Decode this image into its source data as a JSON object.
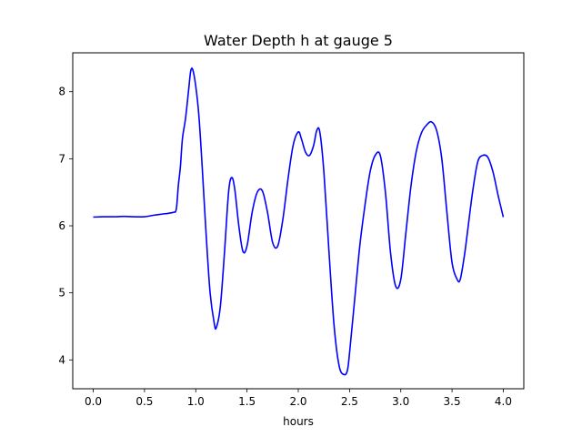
{
  "chart_data": {
    "type": "line",
    "title": "Water Depth h at gauge 5",
    "xlabel": "hours",
    "ylabel": "",
    "xlim": [
      -0.2,
      4.2
    ],
    "ylim": [
      3.57,
      8.58
    ],
    "xticks": [
      0.0,
      0.5,
      1.0,
      1.5,
      2.0,
      2.5,
      3.0,
      3.5,
      4.0
    ],
    "xtick_labels": [
      "0.0",
      "0.5",
      "1.0",
      "1.5",
      "2.0",
      "2.5",
      "3.0",
      "3.5",
      "4.0"
    ],
    "yticks": [
      4,
      5,
      6,
      7,
      8
    ],
    "ytick_labels": [
      "4",
      "5",
      "6",
      "7",
      "8"
    ],
    "grid": false,
    "series": [
      {
        "color": "#0000ff",
        "x": [
          0.0,
          0.1,
          0.2,
          0.3,
          0.4,
          0.5,
          0.6,
          0.7,
          0.78,
          0.81,
          0.83,
          0.85,
          0.87,
          0.9,
          0.93,
          0.95,
          0.97,
          1.0,
          1.03,
          1.06,
          1.1,
          1.14,
          1.18,
          1.2,
          1.24,
          1.28,
          1.32,
          1.35,
          1.38,
          1.42,
          1.46,
          1.5,
          1.55,
          1.6,
          1.65,
          1.7,
          1.75,
          1.8,
          1.85,
          1.9,
          1.95,
          2.0,
          2.03,
          2.07,
          2.11,
          2.15,
          2.18,
          2.21,
          2.25,
          2.3,
          2.35,
          2.4,
          2.45,
          2.48,
          2.5,
          2.55,
          2.6,
          2.65,
          2.7,
          2.75,
          2.8,
          2.85,
          2.9,
          2.95,
          3.0,
          3.05,
          3.1,
          3.15,
          3.2,
          3.25,
          3.3,
          3.35,
          3.4,
          3.45,
          3.5,
          3.55,
          3.58,
          3.62,
          3.65,
          3.7,
          3.75,
          3.8,
          3.85,
          3.9,
          3.95,
          4.0
        ],
        "y": [
          6.13,
          6.135,
          6.135,
          6.14,
          6.135,
          6.135,
          6.16,
          6.18,
          6.2,
          6.25,
          6.6,
          6.88,
          7.3,
          7.6,
          8.02,
          8.3,
          8.33,
          8.08,
          7.65,
          6.95,
          5.9,
          5.0,
          4.55,
          4.48,
          4.8,
          5.6,
          6.5,
          6.72,
          6.55,
          6.0,
          5.62,
          5.7,
          6.2,
          6.5,
          6.52,
          6.2,
          5.75,
          5.7,
          6.1,
          6.7,
          7.2,
          7.4,
          7.3,
          7.1,
          7.05,
          7.2,
          7.42,
          7.4,
          6.8,
          5.6,
          4.5,
          3.9,
          3.78,
          3.85,
          4.1,
          4.9,
          5.7,
          6.3,
          6.8,
          7.05,
          7.05,
          6.5,
          5.6,
          5.1,
          5.2,
          5.9,
          6.6,
          7.1,
          7.38,
          7.5,
          7.55,
          7.42,
          7.0,
          6.2,
          5.45,
          5.2,
          5.2,
          5.55,
          5.9,
          6.5,
          6.95,
          7.05,
          7.02,
          6.8,
          6.45,
          6.13
        ]
      }
    ]
  }
}
